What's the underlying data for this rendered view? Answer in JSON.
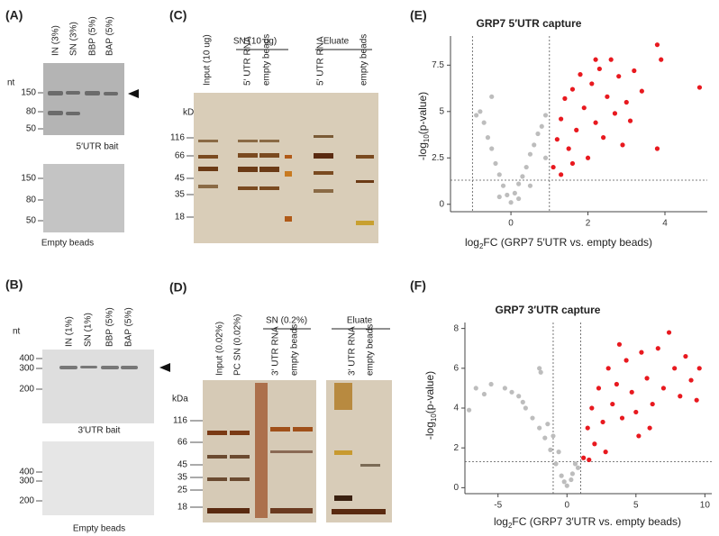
{
  "panel_a": {
    "label": "(A)",
    "unit": "nt",
    "lanes": [
      "IN (3%)",
      "SN (3%)",
      "BBP (5%)",
      "BAP (5%)"
    ],
    "markers_top": [
      "150",
      "80",
      "50"
    ],
    "caption_top": "5′UTR bait",
    "markers_bottom": [
      "150",
      "80",
      "50"
    ],
    "caption_bottom": "Empty beads"
  },
  "panel_b": {
    "label": "(B)",
    "unit": "nt",
    "lanes": [
      "IN (1%)",
      "SN (1%)",
      "BBP (5%)",
      "BAP (5%)"
    ],
    "markers_top": [
      "400",
      "300",
      "200"
    ],
    "caption_top": "3′UTR bait",
    "markers_bottom": [
      "400",
      "300",
      "200"
    ],
    "caption_bottom": "Empty beads"
  },
  "panel_c": {
    "label": "(C)",
    "unit": "kDa",
    "groups": [
      "SN (10 ug)",
      "Eluate"
    ],
    "lanes": [
      "Input (10 ug)",
      "5′ UTR RNA",
      "empty beads",
      "5′ UTR RNA",
      "empty beads"
    ],
    "markers": [
      "116",
      "66",
      "45",
      "35",
      "18"
    ]
  },
  "panel_d": {
    "label": "(D)",
    "unit": "kDa",
    "groups": [
      "SN (0.2%)",
      "Eluate"
    ],
    "lanes": [
      "Input (0.02%)",
      "PC SN (0.02%)",
      "3′ UTR RNA",
      "empty beads",
      "3′ UTR RNA",
      "empty beads"
    ],
    "markers": [
      "116",
      "66",
      "45",
      "35",
      "25",
      "18"
    ]
  },
  "chart_data": [
    {
      "type": "scatter",
      "label": "(E)",
      "title": "GRP7 5′UTR capture",
      "xlabel": {
        "base": "log",
        "sub": "2",
        "rest": "FC (GRP7 5′UTR vs. empty beads)"
      },
      "ylabel": {
        "base": "-log",
        "sub": "10",
        "rest": "(p-value)"
      },
      "xlim": [
        -1.57,
        5.1
      ],
      "ylim": [
        -0.4,
        9.07
      ],
      "xticks": [
        0,
        2,
        4
      ],
      "yticks": [
        0,
        2.5,
        5,
        7.5
      ],
      "thresholds": {
        "x": [
          -1,
          1
        ],
        "y": 1.3
      },
      "series": [
        {
          "color": "#bdbdbd",
          "x": [
            0,
            -0.1,
            0.1,
            -0.2,
            0.2,
            -0.3,
            0.3,
            -0.4,
            0.4,
            -0.5,
            0.5,
            -0.6,
            0.6,
            -0.7,
            0.7,
            -0.8,
            0.8,
            0.9,
            -0.3,
            0.5,
            0.9,
            -0.5,
            -0.9,
            0.2
          ],
          "values": [
            0.1,
            0.5,
            0.6,
            1.0,
            1.1,
            1.6,
            1.5,
            2.2,
            2.0,
            3.0,
            2.7,
            3.6,
            3.2,
            4.4,
            3.8,
            5.0,
            4.2,
            4.8,
            0.4,
            1.0,
            2.5,
            5.8,
            4.8,
            0.3
          ]
        },
        {
          "color": "#e8191f",
          "x": [
            1.1,
            1.2,
            1.3,
            1.4,
            1.5,
            1.6,
            1.7,
            1.8,
            1.9,
            2.0,
            2.1,
            2.2,
            2.3,
            2.4,
            2.5,
            2.6,
            2.7,
            2.8,
            3.0,
            3.2,
            3.4,
            3.8,
            3.9,
            3.8,
            4.9,
            1.3,
            2.9,
            1.6,
            2.2,
            3.1
          ],
          "values": [
            2.0,
            3.5,
            4.6,
            5.7,
            3.0,
            6.2,
            4.0,
            7.0,
            5.2,
            2.5,
            6.5,
            4.4,
            7.3,
            3.6,
            5.8,
            7.8,
            4.9,
            6.9,
            5.5,
            7.2,
            6.1,
            8.6,
            7.8,
            3.0,
            6.3,
            1.6,
            3.2,
            2.2,
            7.8,
            4.5
          ]
        }
      ]
    },
    {
      "type": "scatter",
      "label": "(F)",
      "title": "GRP7 3′UTR capture",
      "xlabel": {
        "base": "log",
        "sub": "2",
        "rest": "FC (GRP7 3′UTR vs. empty beads)"
      },
      "ylabel": {
        "base": "-log",
        "sub": "10",
        "rest": "(p-value)"
      },
      "xlim": [
        -7.4,
        10.5
      ],
      "ylim": [
        -0.3,
        8.3
      ],
      "xticks": [
        -5,
        0,
        5,
        10
      ],
      "yticks": [
        0,
        2,
        4,
        6,
        8
      ],
      "thresholds": {
        "x": [
          -1,
          1
        ],
        "y": 1.3
      },
      "series": [
        {
          "color": "#bdbdbd",
          "x": [
            0,
            -0.4,
            0.4,
            -0.8,
            0.8,
            -1.2,
            -1.6,
            -2,
            -2.5,
            -3,
            -3.5,
            -4,
            -4.5,
            -5.5,
            -6,
            -7.1,
            -6.6,
            -2,
            -1.9,
            -1,
            -0.6,
            0.3,
            -0.2,
            0.6,
            -1.4,
            -3.2
          ],
          "values": [
            0.1,
            0.6,
            0.7,
            1.2,
            1.0,
            1.9,
            2.5,
            3.0,
            3.5,
            4.0,
            4.6,
            4.8,
            5.0,
            5.2,
            4.7,
            3.9,
            5.0,
            6.0,
            5.8,
            2.6,
            1.8,
            0.4,
            0.3,
            1.2,
            3.2,
            4.3
          ]
        },
        {
          "color": "#e8191f",
          "x": [
            1.2,
            1.5,
            1.8,
            2,
            2.3,
            2.6,
            3,
            3.3,
            3.6,
            4,
            4.3,
            4.7,
            5,
            5.4,
            5.8,
            6.2,
            6.6,
            7,
            7.4,
            7.8,
            8.2,
            8.6,
            9,
            9.4,
            9.6,
            3.8,
            2.8,
            6,
            1.6,
            5.2
          ],
          "values": [
            1.5,
            3.0,
            4.0,
            2.2,
            5.0,
            3.3,
            6.0,
            4.2,
            5.2,
            3.5,
            6.4,
            4.8,
            3.8,
            6.8,
            5.5,
            4.2,
            7.0,
            5.0,
            7.8,
            6.0,
            4.6,
            6.6,
            5.4,
            4.4,
            6.0,
            7.2,
            1.8,
            3.0,
            1.4,
            2.6
          ]
        }
      ]
    }
  ]
}
